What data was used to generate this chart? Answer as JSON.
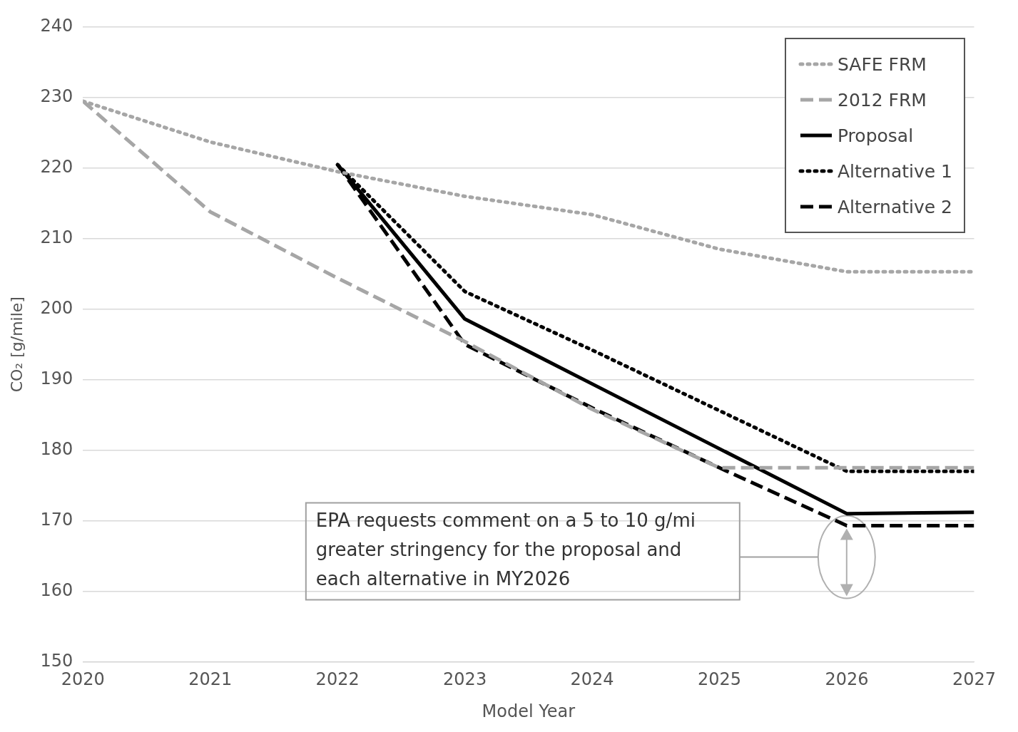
{
  "chart_data": {
    "type": "line",
    "xlabel": "Model Year",
    "ylabel": "CO₂ [g/mile]",
    "x": [
      2020,
      2021,
      2022,
      2023,
      2024,
      2025,
      2026,
      2027
    ],
    "xlim": [
      2020,
      2027
    ],
    "xticks": [
      2020,
      2021,
      2022,
      2023,
      2024,
      2025,
      2026,
      2027
    ],
    "ylim": [
      150,
      240
    ],
    "yticks": [
      150,
      160,
      170,
      180,
      190,
      200,
      210,
      220,
      230,
      240
    ],
    "grid": "y",
    "legend": "top right",
    "marker": "none",
    "series": [
      {
        "name": "SAFE FRM",
        "color": "#a6a6a6",
        "line_style": "dotted",
        "values": [
          229.5,
          223.7,
          219.5,
          216,
          213.4,
          208.5,
          205.3,
          205.3
        ]
      },
      {
        "name": "2012 FRM",
        "color": "#a6a6a6",
        "line_style": "dashed",
        "values": [
          229.5,
          213.8,
          204.4,
          195.4,
          185.8,
          177.5,
          177.5,
          177.5
        ]
      },
      {
        "name": "Proposal",
        "color": "#000000",
        "line_style": "solid",
        "values": [
          null,
          null,
          220.5,
          198.6,
          189.4,
          180.2,
          171,
          171.2
        ]
      },
      {
        "name": "Alternative 1",
        "color": "#000000",
        "line_style": "dotted",
        "values": [
          null,
          null,
          220.5,
          202.5,
          194.2,
          185.6,
          177,
          177
        ]
      },
      {
        "name": "Alternative 2",
        "color": "#000000",
        "line_style": "dashed",
        "values": [
          null,
          null,
          220.5,
          195,
          186,
          177.5,
          169.3,
          169.3
        ]
      }
    ],
    "annotations": [
      "EPA requests comment on a 5 to 10 g/mi greater stringency for the proposal and each alternative in MY2026"
    ]
  }
}
